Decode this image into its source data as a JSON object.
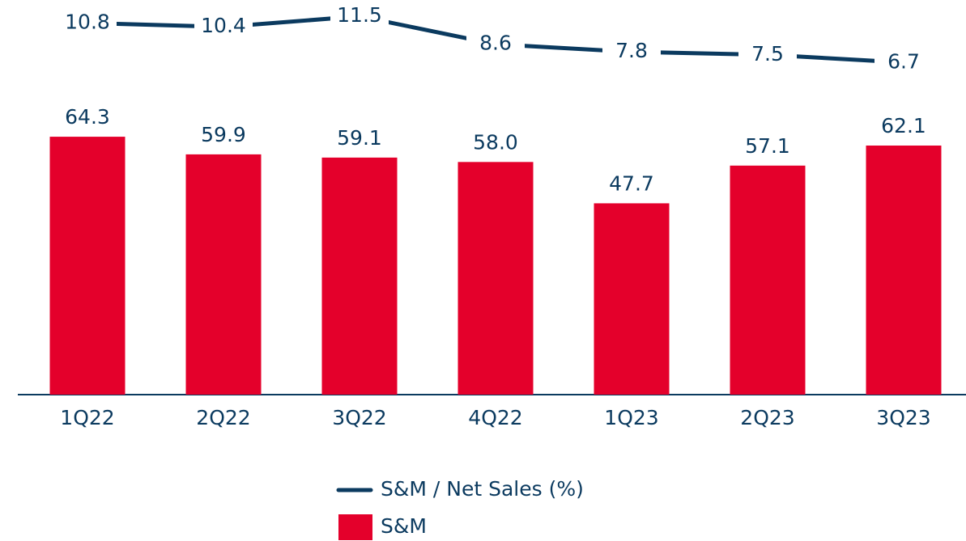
{
  "chart_data": {
    "type": "bar",
    "categories": [
      "1Q22",
      "2Q22",
      "3Q22",
      "4Q22",
      "1Q23",
      "2Q23",
      "3Q23"
    ],
    "series": [
      {
        "name": "S&M / Net Sales (%)",
        "type": "line",
        "axis": "y2",
        "color": "#0b3a5f",
        "values": [
          10.8,
          10.4,
          11.5,
          8.6,
          7.8,
          7.5,
          6.7
        ]
      },
      {
        "name": "S&M",
        "type": "bar",
        "color": "#e4002b",
        "values": [
          64.3,
          59.9,
          59.1,
          58,
          47.7,
          57.1,
          62.1
        ],
        "value_labels": [
          "64.3",
          "59.9",
          "59.1",
          "58.0",
          "47.7",
          "57.1",
          "62.1"
        ]
      }
    ],
    "legend": "bottom"
  }
}
